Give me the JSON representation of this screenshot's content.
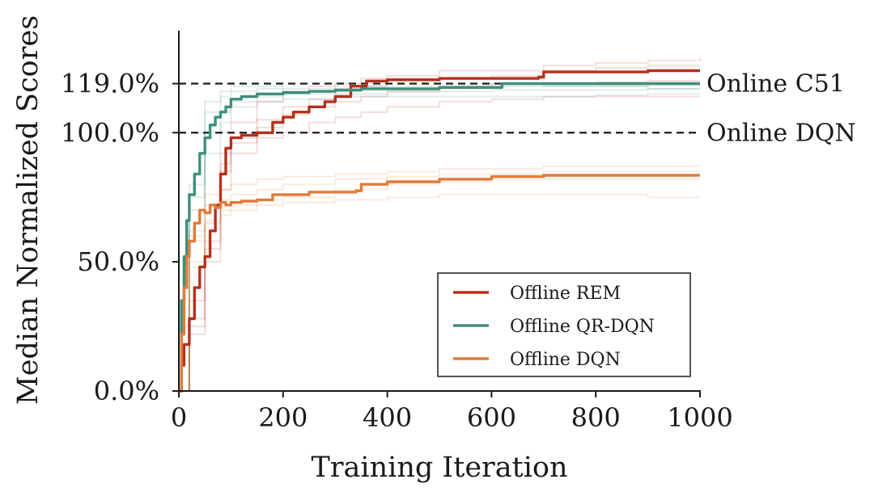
{
  "chart_data": {
    "type": "line",
    "title": "",
    "xlabel": "Training Iteration",
    "ylabel": "Median Normalized Scores",
    "xlim": [
      0,
      1000
    ],
    "ylim": [
      0,
      140
    ],
    "x_ticks": [
      0,
      200,
      400,
      600,
      800,
      1000
    ],
    "x_tick_labels": [
      "0",
      "200",
      "400",
      "600",
      "800",
      "1000"
    ],
    "y_ticks": [
      0,
      50,
      100,
      119
    ],
    "y_tick_labels": [
      "0.0%",
      "50.0%",
      "100.0%",
      "119.0%"
    ],
    "grid": false,
    "legend_position": "lower-right",
    "reference_lines": [
      {
        "label": "Online C51",
        "value": 119
      },
      {
        "label": "Online DQN",
        "value": 100
      }
    ],
    "series": [
      {
        "name": "Offline REM",
        "color": "#b5301c",
        "x": [
          0,
          5,
          10,
          20,
          30,
          40,
          50,
          60,
          70,
          80,
          90,
          100,
          120,
          150,
          180,
          200,
          220,
          250,
          280,
          300,
          330,
          360,
          400,
          500,
          600,
          690,
          700,
          800,
          900,
          1000
        ],
        "y": [
          0,
          10,
          18,
          28,
          40,
          48,
          52,
          62,
          72,
          84,
          94,
          98,
          99,
          100,
          104,
          106,
          108,
          110,
          112,
          114,
          118,
          120,
          120.5,
          121,
          121,
          121.5,
          123.5,
          123.5,
          124,
          124
        ]
      },
      {
        "name": "Offline QR-DQN",
        "color": "#3f8f7c",
        "x": [
          0,
          5,
          10,
          15,
          20,
          30,
          40,
          50,
          60,
          70,
          80,
          90,
          100,
          120,
          150,
          200,
          250,
          300,
          350,
          400,
          500,
          600,
          620,
          700,
          800,
          900,
          1000
        ],
        "y": [
          0,
          35,
          52,
          66,
          76,
          84,
          92,
          98,
          103,
          106,
          108,
          110,
          113,
          114,
          115,
          115.5,
          116,
          116.5,
          117,
          117,
          117.5,
          117.5,
          119,
          119,
          119,
          119,
          119
        ]
      },
      {
        "name": "Offline DQN",
        "color": "#e07b39",
        "x": [
          0,
          5,
          10,
          15,
          20,
          30,
          40,
          50,
          60,
          70,
          80,
          90,
          100,
          120,
          150,
          180,
          200,
          250,
          300,
          340,
          350,
          400,
          500,
          600,
          700,
          800,
          900,
          1000
        ],
        "y": [
          0,
          22,
          40,
          52,
          58,
          65,
          70,
          69,
          72,
          71,
          73,
          72,
          73,
          73.5,
          74,
          76,
          76,
          77,
          77,
          77.5,
          80,
          81,
          82,
          83,
          83.5,
          83.5,
          83.5,
          83.5
        ]
      }
    ],
    "shaded_runs": [
      {
        "series": "Offline REM",
        "x": [
          0,
          20,
          50,
          80,
          100,
          150,
          200,
          250,
          300,
          350,
          400,
          500,
          600,
          700,
          800,
          900,
          1000
        ],
        "runs": [
          [
            0,
            22,
            50,
            78,
            92,
            98,
            100,
            104,
            106,
            108,
            110,
            112,
            113,
            114,
            114,
            114,
            114
          ],
          [
            0,
            35,
            65,
            92,
            104,
            112,
            116,
            118,
            119,
            121,
            122,
            124,
            124,
            126,
            127,
            128,
            129
          ],
          [
            0,
            25,
            55,
            85,
            96,
            102,
            107,
            110,
            112,
            114,
            116,
            118,
            119,
            119,
            119.5,
            120,
            120
          ],
          [
            0,
            28,
            58,
            88,
            98,
            105,
            110,
            113,
            116,
            118,
            120,
            121,
            122,
            124,
            125,
            126,
            126
          ]
        ]
      },
      {
        "series": "Offline QR-DQN",
        "x": [
          0,
          20,
          50,
          80,
          100,
          150,
          200,
          300,
          400,
          500,
          600,
          700,
          800,
          900,
          1000
        ],
        "runs": [
          [
            0,
            75,
            108,
            114,
            116,
            117,
            116,
            117,
            117,
            117.5,
            118,
            118,
            118,
            118.5,
            118.5
          ],
          [
            0,
            62,
            92,
            104,
            110,
            112,
            113,
            114,
            114,
            114,
            114,
            114,
            114.5,
            115,
            115
          ],
          [
            0,
            80,
            112,
            116,
            118,
            118,
            117,
            118,
            118,
            118,
            119,
            118,
            118,
            117,
            117
          ],
          [
            0,
            70,
            100,
            108,
            112,
            114,
            115,
            115,
            116,
            116,
            116.5,
            116.5,
            116.5,
            117,
            117
          ]
        ]
      },
      {
        "series": "Offline DQN",
        "x": [
          0,
          20,
          50,
          80,
          100,
          150,
          200,
          300,
          400,
          500,
          600,
          700,
          800,
          900,
          1000
        ],
        "runs": [
          [
            0,
            58,
            76,
            78,
            80,
            82,
            83,
            84,
            85,
            86,
            86,
            87,
            87,
            87,
            87
          ],
          [
            0,
            48,
            63,
            68,
            70,
            72,
            73,
            74,
            75,
            76,
            76,
            76,
            76,
            75,
            75
          ],
          [
            0,
            60,
            72,
            74,
            76,
            78,
            80,
            82,
            83,
            84,
            84,
            85,
            85,
            85,
            85
          ],
          [
            0,
            50,
            66,
            70,
            72,
            74,
            75,
            78,
            80,
            81,
            82,
            82,
            82,
            82,
            82
          ]
        ]
      }
    ]
  }
}
